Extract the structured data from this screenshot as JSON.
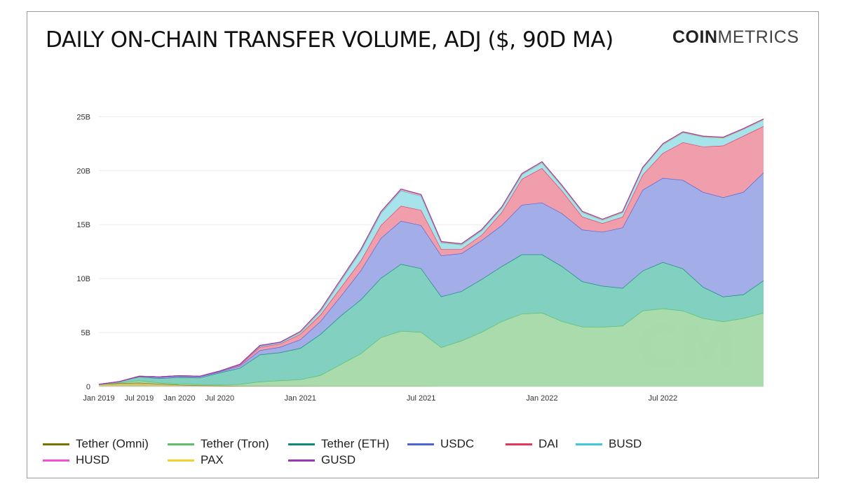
{
  "title": "DAILY ON-CHAIN TRANSFER VOLUME, ADJ ($, 90D MA)",
  "logo": {
    "bold": "COIN",
    "light": "METRICS"
  },
  "watermark_icon": "cm-watermark-icon",
  "chart_data": {
    "type": "area",
    "stacked": true,
    "x": [
      "Jan 2019",
      "Apr 2019",
      "Jul 2019",
      "Oct 2019",
      "Jan 2020",
      "Apr 2020",
      "Jul 2020",
      "Sep 2020",
      "Nov 2020",
      "Dec 2020",
      "Jan 2021",
      "Feb 2021",
      "Mar 2021",
      "Apr 2021",
      "May 2021",
      "Jun 2021",
      "Jul 2021",
      "Aug 2021",
      "Sep 2021",
      "Oct 2021",
      "Nov 2021",
      "Dec 2021",
      "Jan 2022",
      "Feb 2022",
      "Mar 2022",
      "Apr 2022",
      "May 2022",
      "Jun 2022",
      "Jul 2022",
      "Aug 2022",
      "Sep 2022",
      "Oct 2022",
      "Nov 2022",
      "Dec 2022"
    ],
    "x_ticks": [
      "Jan 2019",
      "Jul 2019",
      "Jan 2020",
      "Jul 2020",
      "Jan 2021",
      "Jul 2021",
      "Jan 2022",
      "Jul 2022"
    ],
    "y_ticks": [
      "0",
      "5B",
      "10B",
      "15B",
      "20B",
      "25B"
    ],
    "ylim": [
      0,
      26
    ],
    "y_unit": "billions USD",
    "grid": true,
    "legend_position": "bottom-left",
    "series": [
      {
        "name": "Tether (Omni)",
        "color": "#7a7000",
        "fill": "#c8c26a",
        "values": [
          0.2,
          0.3,
          0.35,
          0.25,
          0.15,
          0.1,
          0.08,
          0.06,
          0.05,
          0.05,
          0.05,
          0.04,
          0.04,
          0.04,
          0.04,
          0.04,
          0.04,
          0.03,
          0.03,
          0.03,
          0.03,
          0.03,
          0.03,
          0.03,
          0.03,
          0.02,
          0.02,
          0.02,
          0.02,
          0.02,
          0.02,
          0.02,
          0.02,
          0.02
        ]
      },
      {
        "name": "Tether (Tron)",
        "color": "#5cbf6a",
        "fill": "#a4d9a8",
        "values": [
          0.0,
          0.05,
          0.2,
          0.1,
          0.1,
          0.1,
          0.1,
          0.15,
          0.4,
          0.5,
          0.6,
          1.0,
          2.0,
          3.0,
          4.5,
          5.1,
          5.0,
          3.6,
          4.2,
          5.0,
          6.0,
          6.7,
          6.8,
          6.0,
          5.5,
          5.5,
          5.6,
          7.0,
          7.2,
          7.0,
          6.3,
          6.0,
          6.3,
          6.8
        ]
      },
      {
        "name": "Tether (ETH)",
        "color": "#0f8a78",
        "fill": "#7acdbd",
        "values": [
          0.0,
          0.1,
          0.35,
          0.4,
          0.6,
          0.6,
          1.1,
          1.5,
          2.5,
          2.6,
          2.9,
          3.8,
          4.5,
          5.0,
          5.5,
          6.2,
          5.9,
          4.7,
          4.6,
          4.9,
          5.1,
          5.5,
          5.4,
          5.1,
          4.2,
          3.8,
          3.5,
          3.7,
          4.3,
          3.9,
          2.9,
          2.3,
          2.2,
          3.0
        ]
      },
      {
        "name": "USDC",
        "color": "#4a63d6",
        "fill": "#9ea9e6",
        "values": [
          0.0,
          0.0,
          0.05,
          0.1,
          0.1,
          0.1,
          0.1,
          0.2,
          0.4,
          0.5,
          0.8,
          1.2,
          1.8,
          2.7,
          3.7,
          4.0,
          4.0,
          3.8,
          3.5,
          3.6,
          3.8,
          4.6,
          4.8,
          4.9,
          4.8,
          5.0,
          5.6,
          7.5,
          7.8,
          8.2,
          8.8,
          9.2,
          9.5,
          10.0
        ]
      },
      {
        "name": "DAI",
        "color": "#e5365b",
        "fill": "#f099a8",
        "values": [
          0.0,
          0.0,
          0.0,
          0.05,
          0.05,
          0.05,
          0.05,
          0.1,
          0.3,
          0.3,
          0.5,
          0.6,
          0.8,
          0.9,
          1.2,
          1.4,
          1.4,
          0.6,
          0.4,
          0.5,
          1.2,
          2.4,
          3.2,
          2.1,
          1.2,
          0.8,
          1.0,
          1.4,
          2.3,
          3.5,
          4.2,
          4.8,
          5.2,
          4.3
        ]
      },
      {
        "name": "BUSD",
        "color": "#3ccad8",
        "fill": "#a1e2ea",
        "values": [
          0.0,
          0.0,
          0.0,
          0.0,
          0.0,
          0.0,
          0.0,
          0.05,
          0.1,
          0.1,
          0.15,
          0.3,
          0.6,
          0.9,
          1.1,
          1.4,
          1.3,
          0.6,
          0.4,
          0.4,
          0.4,
          0.4,
          0.5,
          0.4,
          0.4,
          0.3,
          0.4,
          0.6,
          0.8,
          0.9,
          0.9,
          0.7,
          0.6,
          0.6
        ]
      },
      {
        "name": "HUSD",
        "color": "#f04fd8",
        "fill": "#f5a3e8",
        "values": [
          0.0,
          0.0,
          0.0,
          0.0,
          0.0,
          0.0,
          0.0,
          0.0,
          0.05,
          0.05,
          0.05,
          0.1,
          0.1,
          0.1,
          0.1,
          0.1,
          0.1,
          0.05,
          0.05,
          0.05,
          0.05,
          0.05,
          0.05,
          0.05,
          0.05,
          0.03,
          0.03,
          0.03,
          0.03,
          0.03,
          0.03,
          0.03,
          0.03,
          0.03
        ]
      },
      {
        "name": "PAX",
        "color": "#f2d32e",
        "fill": "#f6e58c",
        "values": [
          0.0,
          0.0,
          0.0,
          0.0,
          0.0,
          0.0,
          0.0,
          0.0,
          0.0,
          0.0,
          0.0,
          0.0,
          0.0,
          0.0,
          0.0,
          0.0,
          0.0,
          0.0,
          0.0,
          0.0,
          0.0,
          0.0,
          0.0,
          0.0,
          0.0,
          0.0,
          0.0,
          0.0,
          0.0,
          0.0,
          0.0,
          0.0,
          0.0,
          0.0
        ]
      },
      {
        "name": "GUSD",
        "color": "#9b36b8",
        "fill": "#c998d8",
        "values": [
          0.0,
          0.0,
          0.0,
          0.0,
          0.0,
          0.0,
          0.0,
          0.0,
          0.0,
          0.0,
          0.05,
          0.05,
          0.05,
          0.05,
          0.05,
          0.05,
          0.05,
          0.05,
          0.05,
          0.05,
          0.05,
          0.05,
          0.05,
          0.05,
          0.05,
          0.05,
          0.05,
          0.05,
          0.05,
          0.05,
          0.05,
          0.05,
          0.05,
          0.05
        ]
      }
    ]
  }
}
